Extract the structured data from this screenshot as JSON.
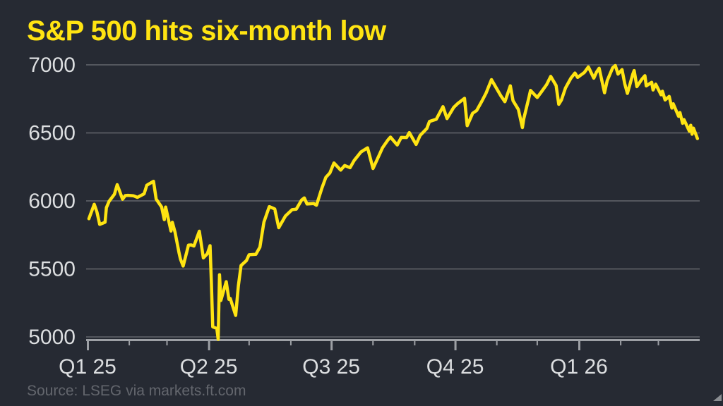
{
  "chart": {
    "title": "S&P 500 hits six-month low",
    "source": "Source: LSEG via markets.ft.com"
  },
  "colors": {
    "background": "#262a33",
    "accent_yellow": "#ffe412",
    "gridline": "#54575e",
    "axis": "#9da0a5",
    "tick_label": "#dcdee0",
    "source_text": "#63666d",
    "corner_mark": "#8a8d91"
  },
  "chart_data": {
    "type": "line",
    "title": "S&P 500 hits six-month low",
    "series_name": "S&P 500",
    "grid": "horizontal",
    "legend": "none",
    "ylim": [
      5000,
      7000
    ],
    "y_ticks": [
      7000,
      6500,
      6000,
      5500,
      5000
    ],
    "x_range": [
      "2025-01-01",
      "2026-03-31"
    ],
    "x_major_ticks": [
      {
        "label": "Q1 25",
        "date": "2025-01-01"
      },
      {
        "label": "Q2 25",
        "date": "2025-04-01"
      },
      {
        "label": "Q3 25",
        "date": "2025-07-01"
      },
      {
        "label": "Q4 25",
        "date": "2025-10-01"
      },
      {
        "label": "Q1 26",
        "date": "2026-01-01"
      }
    ],
    "x_minor_tick_interval": "month",
    "source": "Source: LSEG via markets.ft.com",
    "points": [
      [
        "2025-01-02",
        5869
      ],
      [
        "2025-01-06",
        5975
      ],
      [
        "2025-01-08",
        5918
      ],
      [
        "2025-01-10",
        5827
      ],
      [
        "2025-01-14",
        5843
      ],
      [
        "2025-01-15",
        5950
      ],
      [
        "2025-01-17",
        5997
      ],
      [
        "2025-01-21",
        6049
      ],
      [
        "2025-01-23",
        6119
      ],
      [
        "2025-01-27",
        6012
      ],
      [
        "2025-01-29",
        6039
      ],
      [
        "2025-01-31",
        6041
      ],
      [
        "2025-02-04",
        6038
      ],
      [
        "2025-02-07",
        6026
      ],
      [
        "2025-02-12",
        6052
      ],
      [
        "2025-02-14",
        6115
      ],
      [
        "2025-02-19",
        6144
      ],
      [
        "2025-02-21",
        6013
      ],
      [
        "2025-02-25",
        5955
      ],
      [
        "2025-02-27",
        5862
      ],
      [
        "2025-02-28",
        5955
      ],
      [
        "2025-03-04",
        5778
      ],
      [
        "2025-03-05",
        5843
      ],
      [
        "2025-03-07",
        5770
      ],
      [
        "2025-03-10",
        5615
      ],
      [
        "2025-03-11",
        5572
      ],
      [
        "2025-03-13",
        5521
      ],
      [
        "2025-03-17",
        5675
      ],
      [
        "2025-03-19",
        5676
      ],
      [
        "2025-03-21",
        5668
      ],
      [
        "2025-03-25",
        5777
      ],
      [
        "2025-03-28",
        5581
      ],
      [
        "2025-03-31",
        5612
      ],
      [
        "2025-04-02",
        5671
      ],
      [
        "2025-04-03",
        5396
      ],
      [
        "2025-04-04",
        5074
      ],
      [
        "2025-04-07",
        5062
      ],
      [
        "2025-04-08",
        4983
      ],
      [
        "2025-04-09",
        5457
      ],
      [
        "2025-04-10",
        5268
      ],
      [
        "2025-04-14",
        5406
      ],
      [
        "2025-04-16",
        5276
      ],
      [
        "2025-04-17",
        5283
      ],
      [
        "2025-04-21",
        5158
      ],
      [
        "2025-04-23",
        5376
      ],
      [
        "2025-04-25",
        5525
      ],
      [
        "2025-04-29",
        5561
      ],
      [
        "2025-05-01",
        5604
      ],
      [
        "2025-05-06",
        5607
      ],
      [
        "2025-05-09",
        5660
      ],
      [
        "2025-05-12",
        5844
      ],
      [
        "2025-05-16",
        5958
      ],
      [
        "2025-05-20",
        5941
      ],
      [
        "2025-05-23",
        5803
      ],
      [
        "2025-05-28",
        5889
      ],
      [
        "2025-06-02",
        5936
      ],
      [
        "2025-06-05",
        5939
      ],
      [
        "2025-06-09",
        6006
      ],
      [
        "2025-06-11",
        6022
      ],
      [
        "2025-06-13",
        5977
      ],
      [
        "2025-06-18",
        5981
      ],
      [
        "2025-06-20",
        5968
      ],
      [
        "2025-06-24",
        6092
      ],
      [
        "2025-06-27",
        6173
      ],
      [
        "2025-06-30",
        6205
      ],
      [
        "2025-07-03",
        6279
      ],
      [
        "2025-07-08",
        6226
      ],
      [
        "2025-07-11",
        6260
      ],
      [
        "2025-07-15",
        6244
      ],
      [
        "2025-07-18",
        6297
      ],
      [
        "2025-07-23",
        6359
      ],
      [
        "2025-07-28",
        6390
      ],
      [
        "2025-08-01",
        6238
      ],
      [
        "2025-08-06",
        6345
      ],
      [
        "2025-08-08",
        6389
      ],
      [
        "2025-08-12",
        6446
      ],
      [
        "2025-08-14",
        6469
      ],
      [
        "2025-08-19",
        6411
      ],
      [
        "2025-08-22",
        6467
      ],
      [
        "2025-08-26",
        6466
      ],
      [
        "2025-08-28",
        6502
      ],
      [
        "2025-09-02",
        6415
      ],
      [
        "2025-09-05",
        6481
      ],
      [
        "2025-09-10",
        6532
      ],
      [
        "2025-09-12",
        6584
      ],
      [
        "2025-09-17",
        6600
      ],
      [
        "2025-09-22",
        6693
      ],
      [
        "2025-09-25",
        6605
      ],
      [
        "2025-09-30",
        6688
      ],
      [
        "2025-10-03",
        6716
      ],
      [
        "2025-10-08",
        6754
      ],
      [
        "2025-10-10",
        6553
      ],
      [
        "2025-10-14",
        6644
      ],
      [
        "2025-10-17",
        6664
      ],
      [
        "2025-10-21",
        6735
      ],
      [
        "2025-10-24",
        6792
      ],
      [
        "2025-10-28",
        6891
      ],
      [
        "2025-10-31",
        6840
      ],
      [
        "2025-11-04",
        6772
      ],
      [
        "2025-11-07",
        6729
      ],
      [
        "2025-11-11",
        6846
      ],
      [
        "2025-11-13",
        6737
      ],
      [
        "2025-11-17",
        6672
      ],
      [
        "2025-11-20",
        6539
      ],
      [
        "2025-11-21",
        6603
      ],
      [
        "2025-11-25",
        6766
      ],
      [
        "2025-11-26",
        6812
      ],
      [
        "2025-12-01",
        6760
      ],
      [
        "2025-12-04",
        6800
      ],
      [
        "2025-12-08",
        6855
      ],
      [
        "2025-12-11",
        6915
      ],
      [
        "2025-12-15",
        6848
      ],
      [
        "2025-12-17",
        6710
      ],
      [
        "2025-12-19",
        6742
      ],
      [
        "2025-12-22",
        6830
      ],
      [
        "2025-12-26",
        6902
      ],
      [
        "2025-12-29",
        6940
      ],
      [
        "2025-12-31",
        6908
      ],
      [
        "2026-01-05",
        6944
      ],
      [
        "2026-01-08",
        6985
      ],
      [
        "2026-01-12",
        6902
      ],
      [
        "2026-01-14",
        6946
      ],
      [
        "2026-01-16",
        6975
      ],
      [
        "2026-01-20",
        6795
      ],
      [
        "2026-01-22",
        6884
      ],
      [
        "2026-01-26",
        6978
      ],
      [
        "2026-01-28",
        6995
      ],
      [
        "2026-01-30",
        6932
      ],
      [
        "2026-02-02",
        6965
      ],
      [
        "2026-02-04",
        6862
      ],
      [
        "2026-02-06",
        6790
      ],
      [
        "2026-02-10",
        6932
      ],
      [
        "2026-02-11",
        6958
      ],
      [
        "2026-02-13",
        6840
      ],
      [
        "2026-02-17",
        6898
      ],
      [
        "2026-02-19",
        6920
      ],
      [
        "2026-02-20",
        6845
      ],
      [
        "2026-02-24",
        6872
      ],
      [
        "2026-02-25",
        6815
      ],
      [
        "2026-02-27",
        6858
      ],
      [
        "2026-03-03",
        6780
      ],
      [
        "2026-03-04",
        6806
      ],
      [
        "2026-03-06",
        6742
      ],
      [
        "2026-03-09",
        6768
      ],
      [
        "2026-03-11",
        6682
      ],
      [
        "2026-03-12",
        6714
      ],
      [
        "2026-03-16",
        6622
      ],
      [
        "2026-03-17",
        6650
      ],
      [
        "2026-03-19",
        6570
      ],
      [
        "2026-03-20",
        6598
      ],
      [
        "2026-03-24",
        6512
      ],
      [
        "2026-03-25",
        6556
      ],
      [
        "2026-03-26",
        6490
      ],
      [
        "2026-03-27",
        6535
      ],
      [
        "2026-03-30",
        6458
      ]
    ]
  }
}
